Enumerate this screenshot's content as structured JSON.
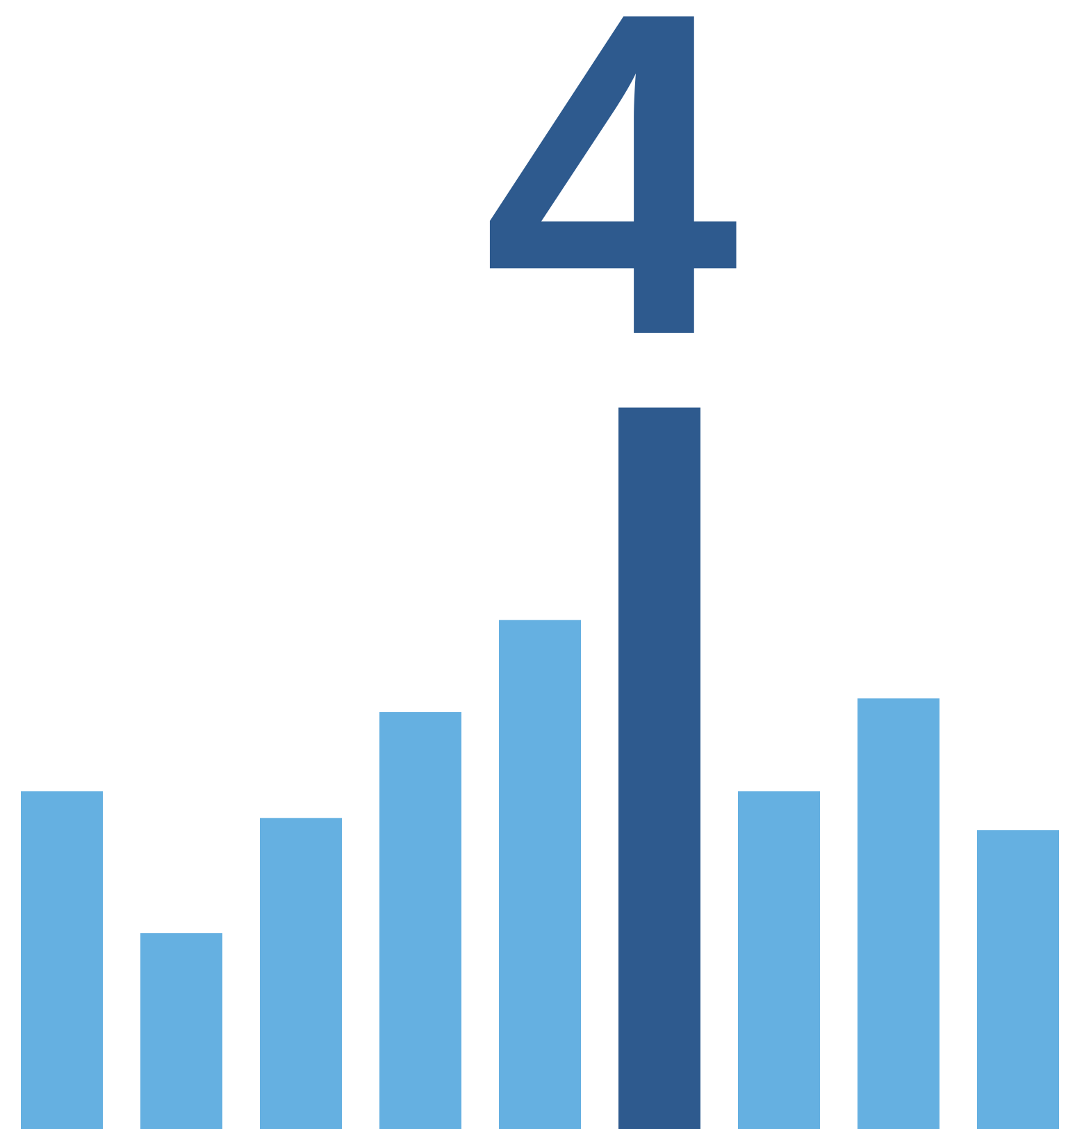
{
  "chart_data": {
    "type": "bar",
    "annotation": "4",
    "values": [
      469,
      272,
      432,
      579,
      707,
      1002,
      469,
      598,
      415
    ],
    "colors": [
      "#65b0e1",
      "#65b0e1",
      "#65b0e1",
      "#65b0e1",
      "#65b0e1",
      "#2e5a8e",
      "#65b0e1",
      "#65b0e1",
      "#65b0e1"
    ],
    "annotation_color": "#2e5a8e",
    "ylim": [
      0,
      1568
    ]
  }
}
